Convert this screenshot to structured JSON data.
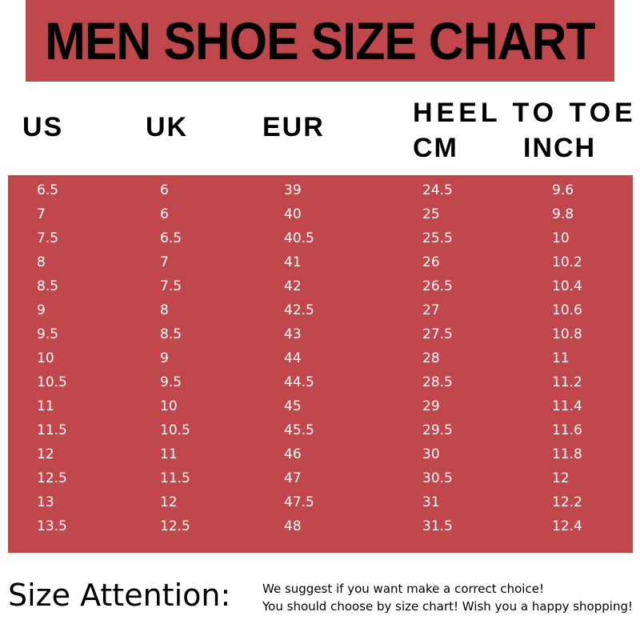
{
  "header": {
    "title": "MEN SHOE SIZE CHART"
  },
  "table": {
    "columns": [
      "US",
      "UK",
      "EUR"
    ],
    "group": "HEEL TO TOE",
    "subcolumns": [
      "CM",
      "INCH"
    ],
    "rows": [
      [
        "6.5",
        "6",
        "39",
        "24.5",
        "9.6"
      ],
      [
        "7",
        "6",
        "40",
        "25",
        "9.8"
      ],
      [
        "7.5",
        "6.5",
        "40.5",
        "25.5",
        "10"
      ],
      [
        "8",
        "7",
        "41",
        "26",
        "10.2"
      ],
      [
        "8.5",
        "7.5",
        "42",
        "26.5",
        "10.4"
      ],
      [
        "9",
        "8",
        "42.5",
        "27",
        "10.6"
      ],
      [
        "9.5",
        "8.5",
        "43",
        "27.5",
        "10.8"
      ],
      [
        "10",
        "9",
        "44",
        "28",
        "11"
      ],
      [
        "10.5",
        "9.5",
        "44.5",
        "28.5",
        "11.2"
      ],
      [
        "11",
        "10",
        "45",
        "29",
        "11.4"
      ],
      [
        "11.5",
        "10.5",
        "45.5",
        "29.5",
        "11.6"
      ],
      [
        "12",
        "11",
        "46",
        "30",
        "11.8"
      ],
      [
        "12.5",
        "11.5",
        "47",
        "30.5",
        "12"
      ],
      [
        "13",
        "12",
        "47.5",
        "31",
        "12.2"
      ],
      [
        "13.5",
        "12.5",
        "48",
        "31.5",
        "12.4"
      ]
    ]
  },
  "footer": {
    "heading": "Size Attention:",
    "lines": [
      "We suggest if you want make a correct choice!",
      "You should choose by size chart! Wish you a happy shopping!"
    ]
  }
}
